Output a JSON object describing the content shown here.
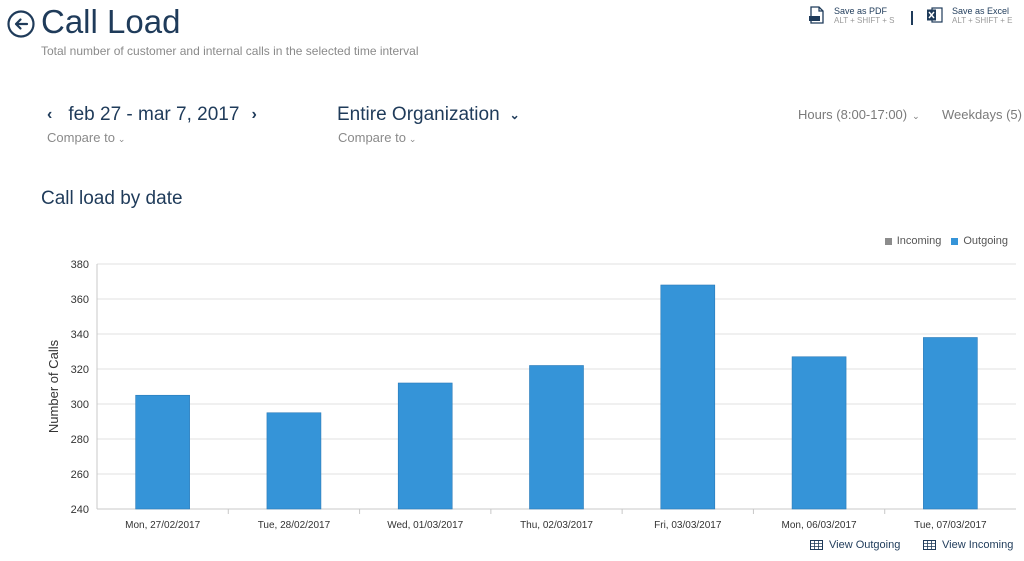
{
  "header": {
    "title": "Call Load",
    "subtitle": "Total number of customer and internal calls in the selected time interval"
  },
  "exports": [
    {
      "label": "Save as PDF",
      "shortcut": "ALT + SHIFT + S",
      "icon": "pdf-file-icon"
    },
    {
      "label": "Save as Excel",
      "shortcut": "ALT + SHIFT + E",
      "icon": "excel-file-icon"
    }
  ],
  "filters": {
    "date_range": "feb 27 - mar 7, 2017",
    "date_compare": "Compare to",
    "organization": "Entire Organization",
    "org_compare": "Compare to",
    "hours": "Hours (8:00-17:00)",
    "weekdays": "Weekdays (5)"
  },
  "section": {
    "title": "Call load by date"
  },
  "footer_links": {
    "view_outgoing": "View Outgoing",
    "view_incoming": "View Incoming"
  },
  "colors": {
    "accent": "#1f3b5a",
    "bar": "#3594d8",
    "incoming": "#8c8c8c",
    "outgoing": "#3594d8"
  },
  "chart_data": {
    "type": "bar",
    "categories": [
      "Mon, 27/02/2017",
      "Tue, 28/02/2017",
      "Wed, 01/03/2017",
      "Thu, 02/03/2017",
      "Fri, 03/03/2017",
      "Mon, 06/03/2017",
      "Tue, 07/03/2017"
    ],
    "series": [
      {
        "name": "Incoming",
        "values": [
          0,
          0,
          0,
          0,
          0,
          0,
          0
        ],
        "visible": false
      },
      {
        "name": "Outgoing",
        "values": [
          305,
          295,
          312,
          322,
          368,
          327,
          338
        ],
        "visible": true
      }
    ],
    "legend": [
      "Incoming",
      "Outgoing"
    ],
    "legend_position": "top-right",
    "ylabel": "Number of Calls",
    "xlabel": "",
    "ylim": [
      240,
      380
    ],
    "yticks": [
      240,
      260,
      280,
      300,
      320,
      340,
      360,
      380
    ],
    "grid": true
  }
}
